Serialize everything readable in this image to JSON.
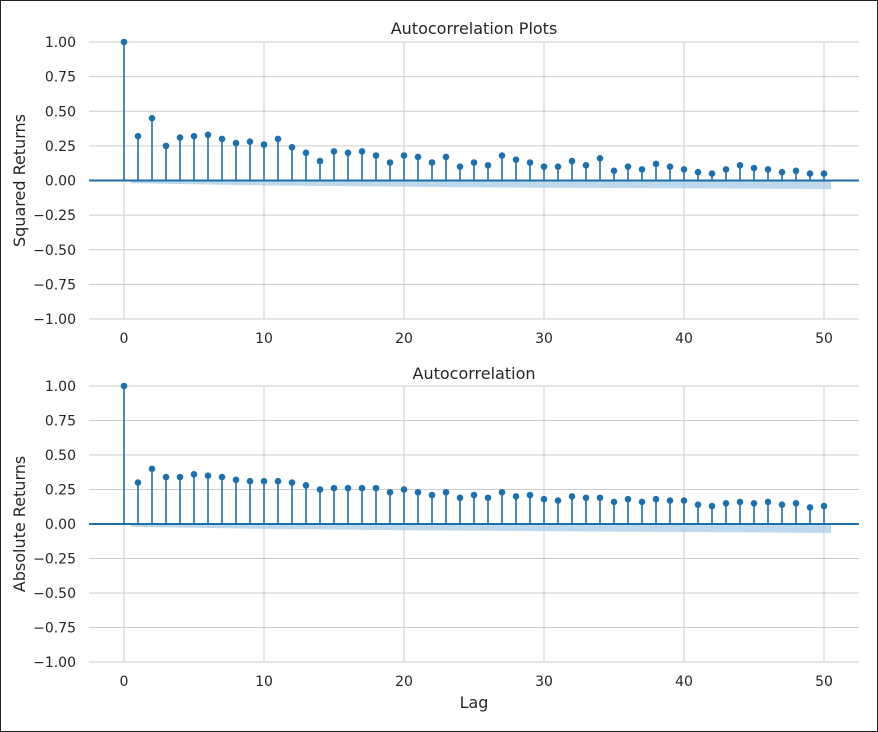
{
  "chart_data": [
    {
      "type": "stem",
      "title": "Autocorrelation Plots",
      "xlabel": "",
      "ylabel": "Squared Returns",
      "xlim": [
        -2.5,
        52.5
      ],
      "ylim": [
        -1.0,
        1.0
      ],
      "xticks": [
        0,
        10,
        20,
        30,
        40,
        50
      ],
      "yticks": [
        1.0,
        0.75,
        0.5,
        0.25,
        0.0,
        -0.25,
        -0.5,
        -0.75,
        -1.0
      ],
      "ytick_labels": [
        "1.00",
        "0.75",
        "0.50",
        "0.25",
        "0.00",
        "−0.25",
        "−0.50",
        "−0.75",
        "−1.00"
      ],
      "grid": true,
      "series": [
        {
          "lags": [
            0,
            1,
            2,
            3,
            4,
            5,
            6,
            7,
            8,
            9,
            10,
            11,
            12,
            13,
            14,
            15,
            16,
            17,
            18,
            19,
            20,
            21,
            22,
            23,
            24,
            25,
            26,
            27,
            28,
            29,
            30,
            31,
            32,
            33,
            34,
            35,
            36,
            37,
            38,
            39,
            40,
            41,
            42,
            43,
            44,
            45,
            46,
            47,
            48,
            49,
            50
          ],
          "values": [
            1.0,
            0.32,
            0.45,
            0.25,
            0.31,
            0.32,
            0.33,
            0.3,
            0.27,
            0.28,
            0.26,
            0.3,
            0.24,
            0.2,
            0.14,
            0.21,
            0.2,
            0.21,
            0.18,
            0.13,
            0.18,
            0.17,
            0.13,
            0.17,
            0.1,
            0.13,
            0.11,
            0.18,
            0.15,
            0.13,
            0.1,
            0.1,
            0.14,
            0.11,
            0.16,
            0.07,
            0.1,
            0.08,
            0.12,
            0.1,
            0.08,
            0.06,
            0.05,
            0.08,
            0.11,
            0.09,
            0.08,
            0.06,
            0.07,
            0.05,
            0.05
          ]
        }
      ],
      "confidence_band": {
        "lags": [
          0.5,
          10,
          20,
          30,
          40,
          50.5
        ],
        "upper": [
          0.0,
          0.0,
          0.0,
          0.0,
          0.0,
          0.0
        ],
        "lower": [
          -0.02,
          -0.035,
          -0.045,
          -0.052,
          -0.057,
          -0.062
        ]
      },
      "colors": {
        "stem": "#1f6fab",
        "band": "#a9cbe4",
        "zero_line": "#1f6fab"
      }
    },
    {
      "type": "stem",
      "title": "Autocorrelation",
      "xlabel": "Lag",
      "ylabel": "Absolute Returns",
      "xlim": [
        -2.5,
        52.5
      ],
      "ylim": [
        -1.0,
        1.0
      ],
      "xticks": [
        0,
        10,
        20,
        30,
        40,
        50
      ],
      "yticks": [
        1.0,
        0.75,
        0.5,
        0.25,
        0.0,
        -0.25,
        -0.5,
        -0.75,
        -1.0
      ],
      "ytick_labels": [
        "1.00",
        "0.75",
        "0.50",
        "0.25",
        "0.00",
        "−0.25",
        "−0.50",
        "−0.75",
        "−1.00"
      ],
      "grid": true,
      "series": [
        {
          "lags": [
            0,
            1,
            2,
            3,
            4,
            5,
            6,
            7,
            8,
            9,
            10,
            11,
            12,
            13,
            14,
            15,
            16,
            17,
            18,
            19,
            20,
            21,
            22,
            23,
            24,
            25,
            26,
            27,
            28,
            29,
            30,
            31,
            32,
            33,
            34,
            35,
            36,
            37,
            38,
            39,
            40,
            41,
            42,
            43,
            44,
            45,
            46,
            47,
            48,
            49,
            50
          ],
          "values": [
            1.0,
            0.3,
            0.4,
            0.34,
            0.34,
            0.36,
            0.35,
            0.34,
            0.32,
            0.31,
            0.31,
            0.31,
            0.3,
            0.28,
            0.25,
            0.26,
            0.26,
            0.26,
            0.26,
            0.23,
            0.25,
            0.23,
            0.21,
            0.23,
            0.19,
            0.21,
            0.19,
            0.23,
            0.2,
            0.21,
            0.18,
            0.17,
            0.2,
            0.19,
            0.19,
            0.16,
            0.18,
            0.16,
            0.18,
            0.17,
            0.17,
            0.14,
            0.13,
            0.15,
            0.16,
            0.15,
            0.16,
            0.14,
            0.15,
            0.12,
            0.13
          ]
        }
      ],
      "confidence_band": {
        "lags": [
          0.5,
          10,
          20,
          30,
          40,
          50.5
        ],
        "upper": [
          0.0,
          0.0,
          0.0,
          0.0,
          0.0,
          0.0
        ],
        "lower": [
          -0.02,
          -0.035,
          -0.045,
          -0.052,
          -0.058,
          -0.065
        ]
      },
      "colors": {
        "stem": "#1f6fab",
        "band": "#a9cbe4",
        "zero_line": "#1f6fab"
      }
    }
  ]
}
